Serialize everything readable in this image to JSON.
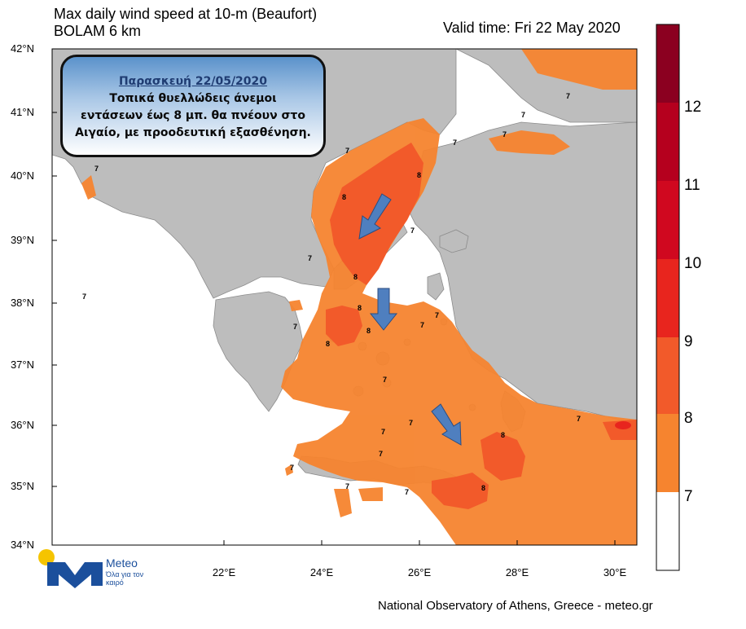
{
  "title": {
    "line1": "Max daily wind speed at 10-m (Beaufort)",
    "line2": "BOLAM 6 km"
  },
  "valid_time": "Valid time: Fri 22 May 2020",
  "info_box": {
    "date": "Παρασκευή 22/05/2020",
    "line1": "Τοπικά θυελλώδεις άνεμοι",
    "line2": "εντάσεων έως 8 μπ. θα πνέουν στο",
    "line3": "Αιγαίο, με προοδευτική εξασθένηση."
  },
  "lat_labels": [
    "42°N",
    "41°N",
    "40°N",
    "39°N",
    "38°N",
    "37°N",
    "36°N",
    "35°N",
    "34°N"
  ],
  "lon_labels": [
    "22°E",
    "24°E",
    "26°E",
    "28°E",
    "30°E"
  ],
  "colorbar": {
    "labels": [
      "12",
      "11",
      "10",
      "9",
      "8",
      "7"
    ],
    "colors": {
      "lt7": "#ffffff",
      "b7_8": "#f6842f",
      "b8_9": "#f25a2a",
      "b9_10": "#e8251e",
      "b10_11": "#d0081f",
      "b11_12": "#b5001e",
      "b12_13": "#8b0020"
    }
  },
  "contour_labels": {
    "seven": "7",
    "eight": "8"
  },
  "land_color": "#bdbdbd",
  "arrow_color": "#4f7fbf",
  "logo": {
    "name": "Meteo",
    "tagline": "Όλα για τον καιρό"
  },
  "footer": "National Observatory of Athens, Greece - meteo.gr"
}
